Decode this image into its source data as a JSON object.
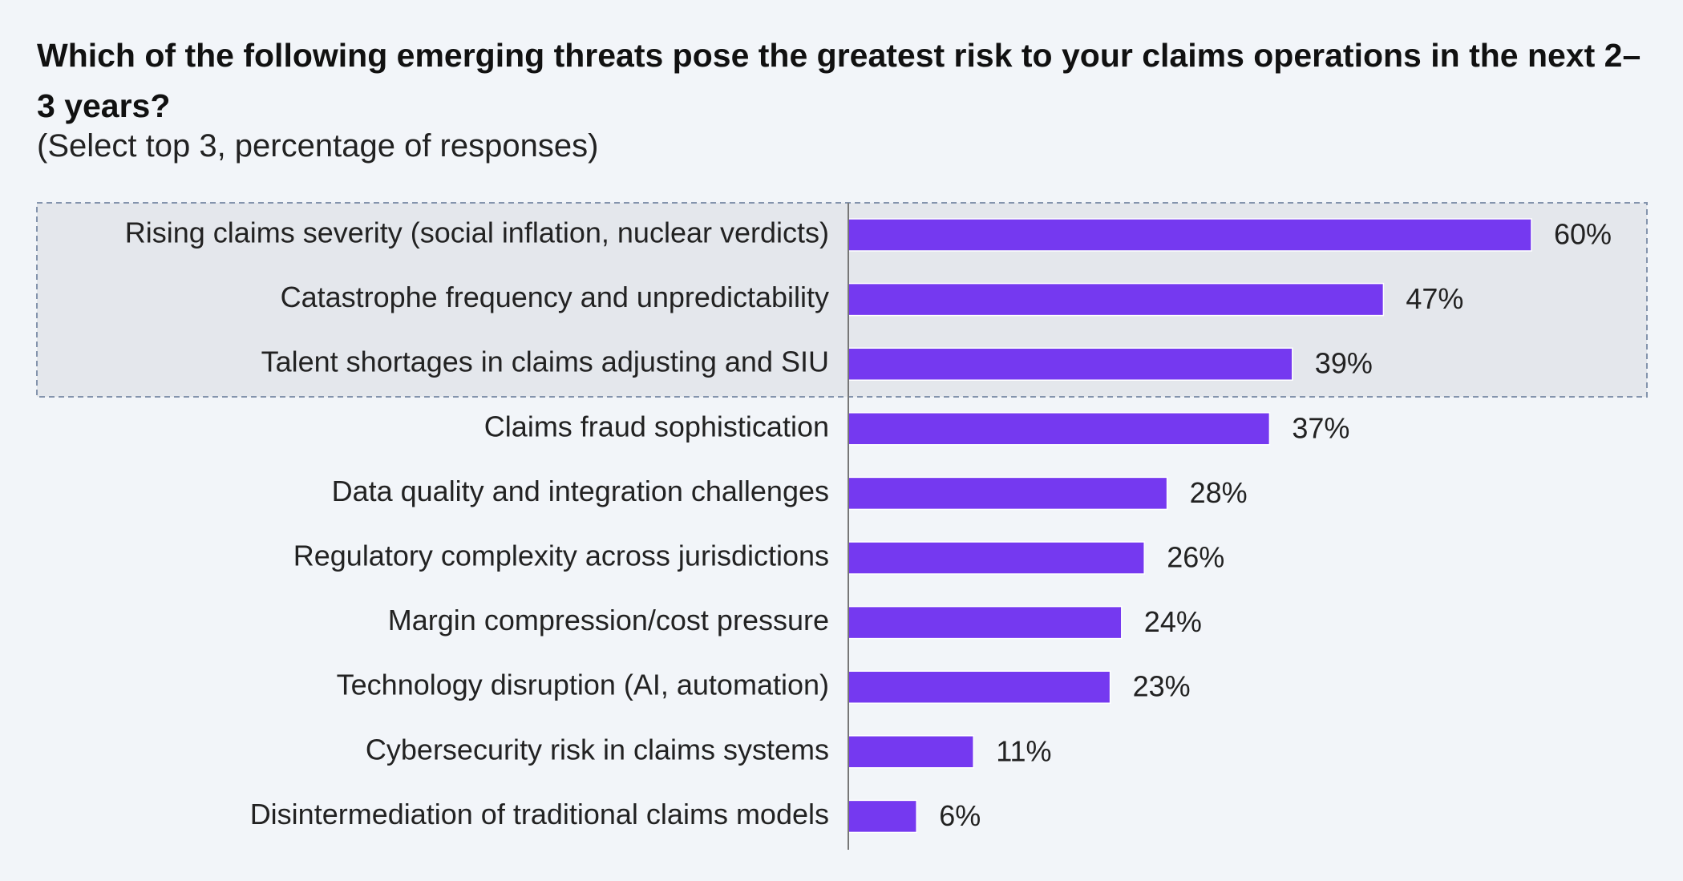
{
  "chart_data": {
    "type": "bar",
    "orientation": "horizontal",
    "title": "Which of the following emerging threats pose the greatest risk to your claims operations in the next 2–3 years?",
    "subtitle": "(Select top 3, percentage of responses)",
    "categories": [
      "Rising claims severity (social inflation, nuclear verdicts)",
      "Catastrophe frequency and unpredictability",
      "Talent shortages in claims adjusting and SIU",
      "Claims fraud sophistication",
      "Data quality and integration challenges",
      "Regulatory complexity across jurisdictions",
      "Margin compression/cost pressure",
      "Technology disruption (AI, automation)",
      "Cybersecurity risk in claims systems",
      "Disintermediation of traditional claims models"
    ],
    "values": [
      60,
      47,
      39,
      37,
      28,
      26,
      24,
      23,
      11,
      6
    ],
    "value_labels": [
      "60%",
      "47%",
      "39%",
      "37%",
      "28%",
      "26%",
      "24%",
      "23%",
      "11%",
      "6%"
    ],
    "color": "#7539f0"
  }
}
